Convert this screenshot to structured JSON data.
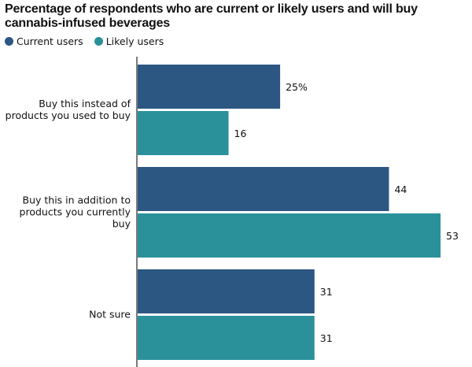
{
  "chart_data": {
    "type": "bar",
    "orientation": "horizontal",
    "title": "Percentage of respondents who are current or likely users and will buy cannabis-infused beverages",
    "xlabel": "",
    "ylabel": "",
    "xlim": [
      0,
      53
    ],
    "grid": false,
    "legend_position": "top-left",
    "categories": [
      [
        "Buy this instead of",
        "products you used to buy"
      ],
      [
        "Buy this in addition to",
        "products you currently",
        "buy"
      ],
      [
        "Not sure"
      ]
    ],
    "series": [
      {
        "name": "Current users",
        "color": "#2d5783",
        "values": [
          25,
          44,
          31
        ],
        "labels": [
          "25%",
          "44",
          "31"
        ]
      },
      {
        "name": "Likely users",
        "color": "#2a919b",
        "values": [
          16,
          53,
          31
        ],
        "labels": [
          "16",
          "53",
          "31"
        ]
      }
    ]
  }
}
